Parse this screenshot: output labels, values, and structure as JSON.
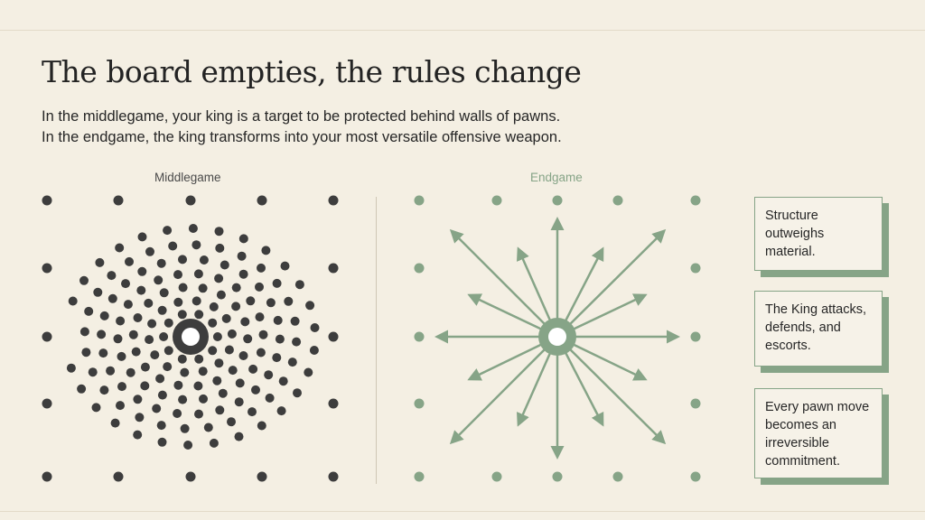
{
  "header": {
    "title": "The board empties, the rules change",
    "subtitle_lines": [
      "In the middlegame, your king is a target to be protected behind walls of pawns.",
      "In the endgame, the king transforms into your most versatile offensive weapon."
    ]
  },
  "panels": {
    "middlegame_label": "Middlegame",
    "endgame_label": "Endgame"
  },
  "callouts": [
    {
      "text": "Structure outweighs material."
    },
    {
      "text": "The King attacks, defends, and escorts."
    },
    {
      "text": "Every pawn move becomes an irreversible commitment."
    }
  ],
  "colors": {
    "background": "#f4efe3",
    "dark_dot": "#3d3d3d",
    "green": "#86a487"
  }
}
